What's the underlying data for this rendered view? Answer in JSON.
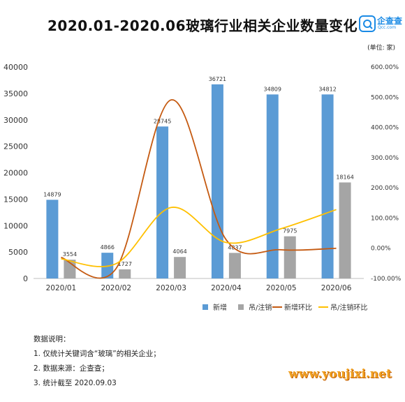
{
  "title": "2020.01-2020.06玻璃行业相关企业数量变化",
  "logo": {
    "name": "企查查",
    "sub": "Qcc.com"
  },
  "unit": "(单位: 家)",
  "notes": {
    "heading": "数据说明：",
    "items": [
      "1. 仅统计关键词含“玻璃”的相关企业；",
      "2. 数据来源：企查查；",
      "3. 统计截至 2020.09.03"
    ]
  },
  "watermark": "www.youjixi.net",
  "colors": {
    "blue": "#5b9bd5",
    "gray": "#a5a5a5",
    "orange": "#c55a11",
    "yellow": "#ffc000"
  },
  "chart_data": {
    "type": "bar",
    "title": "2020.01-2020.06玻璃行业相关企业数量变化",
    "categories": [
      "2020/01",
      "2020/02",
      "2020/03",
      "2020/04",
      "2020/05",
      "2020/06"
    ],
    "ylim": [
      0,
      40000
    ],
    "y_ticks": [
      "0",
      "5000",
      "10000",
      "15000",
      "20000",
      "25000",
      "30000",
      "35000",
      "40000"
    ],
    "y2lim": [
      -100,
      600
    ],
    "y2_ticks": [
      "-100.00%",
      "0.00%",
      "100.00%",
      "200.00%",
      "300.00%",
      "400.00%",
      "500.00%",
      "600.00%"
    ],
    "legend_position": "bottom-right",
    "series": [
      {
        "name": "新增",
        "kind": "bar",
        "axis": "left",
        "values": [
          14879,
          4866,
          28745,
          36721,
          34809,
          34812
        ],
        "labels": [
          "14879",
          "4866",
          "28745",
          "36721",
          "34809",
          "34812"
        ]
      },
      {
        "name": "吊/注销",
        "kind": "bar",
        "axis": "left",
        "values": [
          3554,
          1727,
          4064,
          4837,
          7975,
          18164
        ],
        "labels": [
          "3554",
          "1727",
          "4064",
          "4837",
          "7975",
          "18164"
        ]
      },
      {
        "name": "新增环比",
        "kind": "line",
        "axis": "right",
        "values": [
          -30,
          -67,
          491,
          28,
          -5,
          0
        ]
      },
      {
        "name": "吊/注销环比",
        "kind": "line",
        "axis": "right",
        "values": [
          -35,
          -51,
          135,
          19,
          65,
          128
        ]
      }
    ]
  }
}
